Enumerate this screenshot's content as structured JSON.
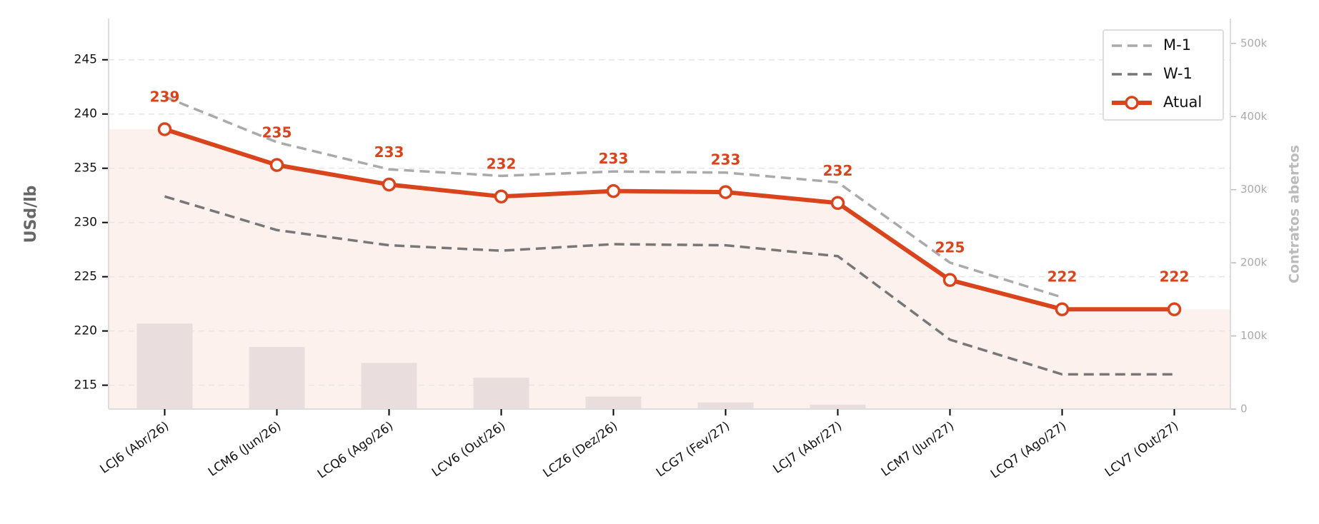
{
  "chart_data": {
    "type": "line",
    "y_label": "USd/lb",
    "y2_label": "Contratos abertos",
    "categories": [
      "LCJ6 (Abr/26)",
      "LCM6 (Jun/26)",
      "LCQ6 (Ago/26)",
      "LCV6 (Out/26)",
      "LCZ6 (Dez/26)",
      "LCG7 (Fev/27)",
      "LCJ7 (Abr/27)",
      "LCM7 (Jun/27)",
      "LCQ7 (Ago/27)",
      "LCV7 (Out/27)"
    ],
    "series": [
      {
        "name": "M-1",
        "color": "#aaaaaa",
        "style": "dashed",
        "values": [
          241.6,
          237.4,
          234.9,
          234.3,
          234.7,
          234.6,
          233.7,
          226.3,
          223.1,
          null
        ]
      },
      {
        "name": "W-1",
        "color": "#777777",
        "style": "dashed",
        "values": [
          232.4,
          229.3,
          227.9,
          227.4,
          228.0,
          227.9,
          226.9,
          219.2,
          216.0,
          216.0
        ]
      },
      {
        "name": "Atual",
        "color": "#d9441c",
        "style": "solid",
        "markers": true,
        "values": [
          238.6,
          235.3,
          233.5,
          232.4,
          232.9,
          232.8,
          231.8,
          224.7,
          222.0,
          222.0
        ],
        "value_labels": [
          "239",
          "235",
          "233",
          "232",
          "233",
          "233",
          "232",
          "225",
          "222",
          "222"
        ]
      }
    ],
    "bars": {
      "axis": "y2",
      "color": "#e9dedd",
      "values": [
        117000,
        85000,
        63000,
        43000,
        17000,
        9000,
        6000,
        0,
        0,
        0
      ]
    },
    "area_color": "#fdf1ee",
    "ylim": [
      212.8,
      248.8
    ],
    "yticks": [
      215,
      220,
      225,
      230,
      235,
      240,
      245
    ],
    "y2lim": [
      0,
      534000
    ],
    "y2ticks": [
      0,
      {
        "value": 100000,
        "label": "100k"
      },
      {
        "value": 200000,
        "label": "200k"
      },
      {
        "value": 300000,
        "label": "300k"
      },
      {
        "value": 400000,
        "label": "400k"
      },
      {
        "value": 500000,
        "label": "500k"
      }
    ],
    "grid": true,
    "legend": "upper right"
  }
}
